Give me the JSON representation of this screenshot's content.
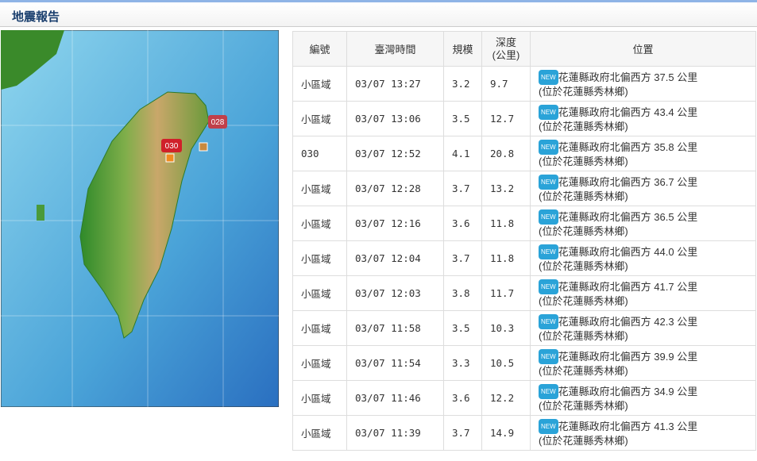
{
  "header": {
    "title": "地震報告"
  },
  "map": {
    "markers": [
      {
        "label": "028"
      },
      {
        "label": "030"
      }
    ]
  },
  "table": {
    "headers": {
      "id": "編號",
      "time": "臺灣時間",
      "magnitude": "規模",
      "depth": [
        "深度",
        "(公里)"
      ],
      "location": "位置"
    },
    "rows": [
      [
        "小區域",
        "03/07 13:27",
        "3.2",
        "9.7",
        "NEW",
        "花蓮縣政府北偏西方 37.5 公里",
        "(位於花蓮縣秀林鄉)"
      ],
      [
        "小區域",
        "03/07 13:06",
        "3.5",
        "12.7",
        "NEW",
        "花蓮縣政府北偏西方 43.4 公里",
        "(位於花蓮縣秀林鄉)"
      ],
      [
        "030",
        "03/07 12:52",
        "4.1",
        "20.8",
        "NEW",
        "花蓮縣政府北偏西方 35.8 公里",
        "(位於花蓮縣秀林鄉)"
      ],
      [
        "小區域",
        "03/07 12:28",
        "3.7",
        "13.2",
        "NEW",
        "花蓮縣政府北偏西方 36.7 公里",
        "(位於花蓮縣秀林鄉)"
      ],
      [
        "小區域",
        "03/07 12:16",
        "3.6",
        "11.8",
        "NEW",
        "花蓮縣政府北偏西方 36.5 公里",
        "(位於花蓮縣秀林鄉)"
      ],
      [
        "小區域",
        "03/07 12:04",
        "3.7",
        "11.8",
        "NEW",
        "花蓮縣政府北偏西方 44.0 公里",
        "(位於花蓮縣秀林鄉)"
      ],
      [
        "小區域",
        "03/07 12:03",
        "3.8",
        "11.7",
        "NEW",
        "花蓮縣政府北偏西方 41.7 公里",
        "(位於花蓮縣秀林鄉)"
      ],
      [
        "小區域",
        "03/07 11:58",
        "3.5",
        "10.3",
        "NEW",
        "花蓮縣政府北偏西方 42.3 公里",
        "(位於花蓮縣秀林鄉)"
      ],
      [
        "小區域",
        "03/07 11:54",
        "3.3",
        "10.5",
        "NEW",
        "花蓮縣政府北偏西方 39.9 公里",
        "(位於花蓮縣秀林鄉)"
      ],
      [
        "小區域",
        "03/07 11:46",
        "3.6",
        "12.2",
        "NEW",
        "花蓮縣政府北偏西方 34.9 公里",
        "(位於花蓮縣秀林鄉)"
      ],
      [
        "小區域",
        "03/07 11:39",
        "3.7",
        "14.9",
        "NEW",
        "花蓮縣政府北偏西方 41.3 公里",
        "(位於花蓮縣秀林鄉)"
      ]
    ]
  }
}
